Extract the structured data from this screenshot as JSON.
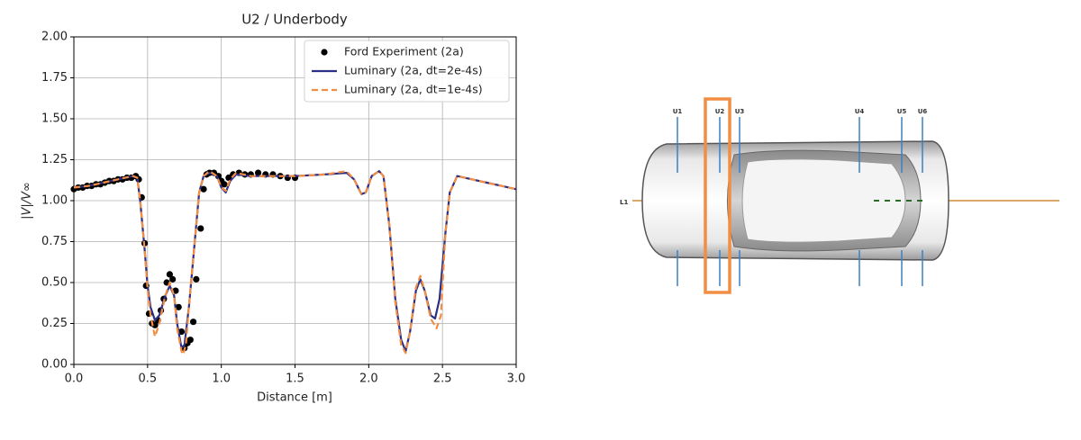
{
  "chart_data": {
    "type": "line",
    "title": "U2 / Underbody",
    "x_label": "Distance [m]",
    "y_label": "|V|/V∞",
    "xlim": [
      0,
      3
    ],
    "ylim": [
      0,
      2
    ],
    "grid": true,
    "legend": "upper right",
    "xticks": [
      {
        "value": 0,
        "label": "0.0"
      },
      0.5,
      {
        "value": 1,
        "label": "1.0"
      },
      1.5,
      {
        "value": 2,
        "label": "2.0"
      },
      2.5,
      {
        "value": 3,
        "label": "3.0"
      }
    ],
    "yticks": [
      {
        "value": 0,
        "label": "0.00"
      },
      0.25,
      {
        "value": 0.5,
        "label": "0.50"
      },
      0.75,
      {
        "value": 1,
        "label": "1.00"
      },
      1.25,
      {
        "value": 1.5,
        "label": "1.50"
      },
      1.75,
      {
        "value": 2,
        "label": "2.00"
      }
    ],
    "series": [
      {
        "name": "Ford Experiment (2a)",
        "color": "#000000",
        "style": "points",
        "x": [
          0.0,
          0.03,
          0.06,
          0.09,
          0.12,
          0.15,
          0.18,
          0.21,
          0.24,
          0.27,
          0.3,
          0.33,
          0.36,
          0.39,
          0.42,
          0.44,
          0.46,
          0.48,
          0.49,
          0.51,
          0.53,
          0.55,
          0.57,
          0.59,
          0.61,
          0.63,
          0.65,
          0.67,
          0.69,
          0.71,
          0.73,
          0.75,
          0.77,
          0.79,
          0.81,
          0.83,
          0.86,
          0.88,
          0.9,
          0.92,
          0.95,
          0.98,
          1.0,
          1.02,
          1.05,
          1.08,
          1.12,
          1.16,
          1.2,
          1.25,
          1.3,
          1.35,
          1.4,
          1.45,
          1.5
        ],
        "values": [
          1.07,
          1.08,
          1.08,
          1.09,
          1.09,
          1.1,
          1.1,
          1.11,
          1.12,
          1.12,
          1.13,
          1.13,
          1.14,
          1.14,
          1.15,
          1.13,
          1.02,
          0.74,
          0.48,
          0.31,
          0.25,
          0.24,
          0.27,
          0.33,
          0.4,
          0.5,
          0.55,
          0.52,
          0.45,
          0.35,
          0.2,
          0.1,
          0.13,
          0.15,
          0.26,
          0.52,
          0.83,
          1.07,
          1.16,
          1.17,
          1.17,
          1.15,
          1.12,
          1.1,
          1.14,
          1.16,
          1.17,
          1.16,
          1.16,
          1.17,
          1.16,
          1.16,
          1.15,
          1.14,
          1.14
        ]
      },
      {
        "name": "Luminary (2a, dt=2e-4s)",
        "color": "#2b2f86",
        "style": "solid",
        "x": [
          0.0,
          0.1,
          0.2,
          0.3,
          0.4,
          0.43,
          0.45,
          0.48,
          0.5,
          0.52,
          0.55,
          0.58,
          0.62,
          0.65,
          0.68,
          0.7,
          0.73,
          0.75,
          0.78,
          0.82,
          0.85,
          0.88,
          0.92,
          0.97,
          1.0,
          1.03,
          1.06,
          1.1,
          1.2,
          1.3,
          1.5,
          1.7,
          1.85,
          1.9,
          1.95,
          1.98,
          2.02,
          2.07,
          2.1,
          2.14,
          2.18,
          2.22,
          2.25,
          2.28,
          2.32,
          2.35,
          2.38,
          2.42,
          2.45,
          2.48,
          2.52,
          2.55,
          2.6,
          2.7,
          2.8,
          2.9,
          3.0
        ],
        "values": [
          1.08,
          1.09,
          1.11,
          1.13,
          1.15,
          1.14,
          1.0,
          0.7,
          0.48,
          0.35,
          0.27,
          0.3,
          0.42,
          0.48,
          0.42,
          0.25,
          0.1,
          0.12,
          0.35,
          0.75,
          1.05,
          1.15,
          1.17,
          1.15,
          1.08,
          1.05,
          1.12,
          1.16,
          1.15,
          1.15,
          1.15,
          1.16,
          1.17,
          1.13,
          1.04,
          1.05,
          1.15,
          1.18,
          1.15,
          0.85,
          0.4,
          0.15,
          0.08,
          0.2,
          0.45,
          0.52,
          0.45,
          0.3,
          0.28,
          0.4,
          0.8,
          1.05,
          1.15,
          1.13,
          1.11,
          1.09,
          1.07
        ]
      },
      {
        "name": "Luminary (2a, dt=1e-4s)",
        "color": "#f28e43",
        "style": "dashed",
        "x": [
          0.0,
          0.1,
          0.2,
          0.3,
          0.4,
          0.43,
          0.45,
          0.48,
          0.5,
          0.52,
          0.55,
          0.58,
          0.62,
          0.65,
          0.68,
          0.7,
          0.73,
          0.74,
          0.76,
          0.78,
          0.82,
          0.85,
          0.88,
          0.92,
          0.97,
          1.0,
          1.03,
          1.06,
          1.1,
          1.2,
          1.3,
          1.5,
          1.7,
          1.85,
          1.9,
          1.95,
          1.98,
          2.02,
          2.07,
          2.1,
          2.14,
          2.18,
          2.22,
          2.25,
          2.28,
          2.32,
          2.35,
          2.38,
          2.42,
          2.46,
          2.49,
          2.52,
          2.55,
          2.6,
          2.7,
          2.8,
          2.9,
          3.0
        ],
        "values": [
          1.08,
          1.09,
          1.11,
          1.13,
          1.15,
          1.14,
          1.0,
          0.7,
          0.46,
          0.3,
          0.17,
          0.25,
          0.42,
          0.5,
          0.42,
          0.22,
          0.08,
          0.06,
          0.12,
          0.35,
          0.75,
          1.05,
          1.15,
          1.18,
          1.15,
          1.08,
          1.06,
          1.13,
          1.17,
          1.15,
          1.15,
          1.15,
          1.16,
          1.18,
          1.13,
          1.04,
          1.05,
          1.15,
          1.18,
          1.15,
          0.85,
          0.38,
          0.12,
          0.07,
          0.2,
          0.47,
          0.54,
          0.45,
          0.28,
          0.22,
          0.3,
          0.8,
          1.05,
          1.15,
          1.13,
          1.11,
          1.09,
          1.07
        ]
      }
    ]
  },
  "car_diagram": {
    "stations": [
      "U1",
      "U2",
      "U3",
      "U4",
      "U5",
      "U6"
    ],
    "line_label": "L1"
  }
}
